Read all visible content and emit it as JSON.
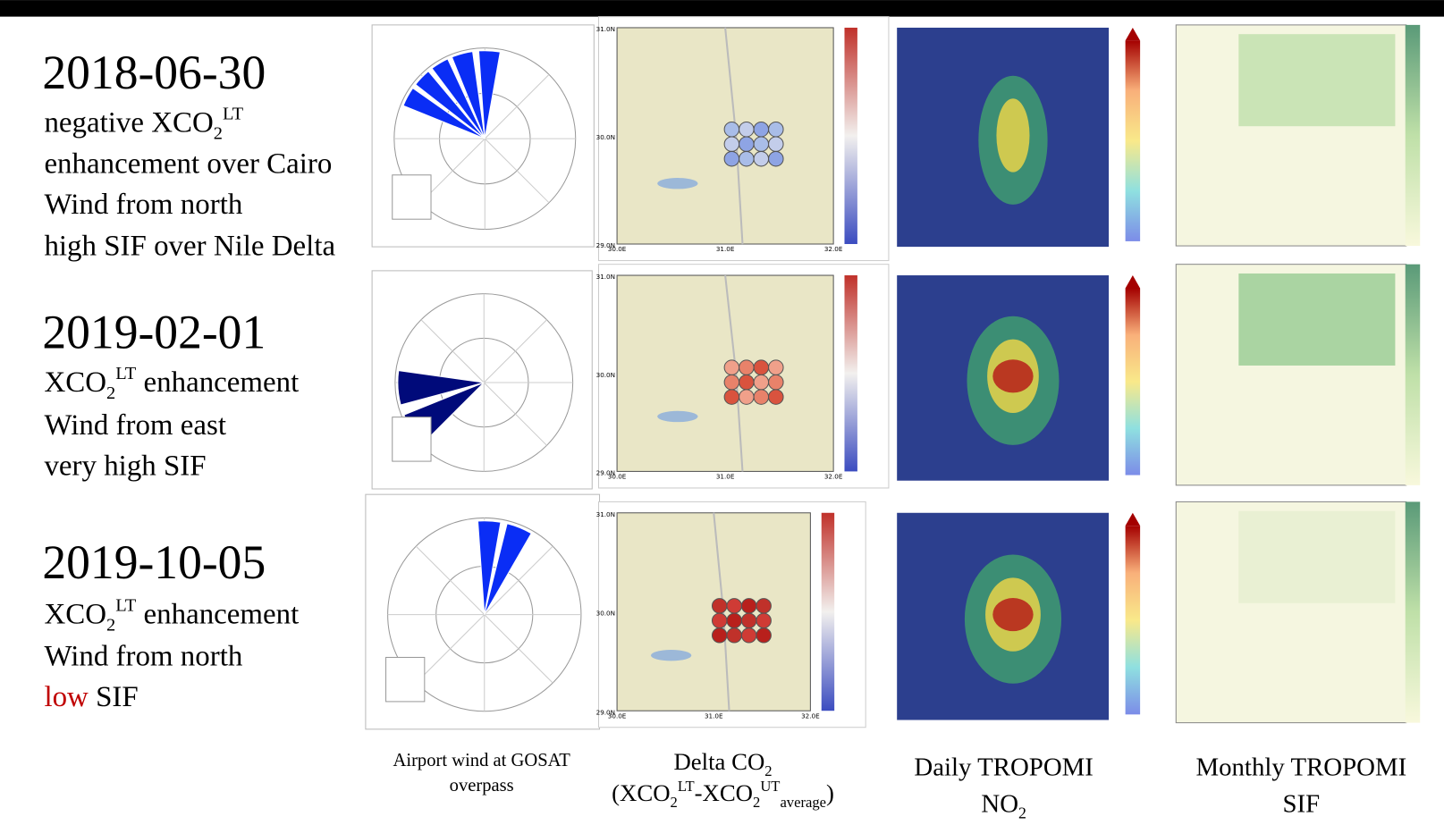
{
  "rows": [
    {
      "date": "2018-06-30",
      "lines": [
        [
          {
            "text": "negative XCO"
          },
          {
            "sub": "2"
          },
          {
            "sup": "LT"
          }
        ],
        [
          {
            "text": "enhancement over Cairo"
          }
        ],
        [
          {
            "text": "Wind from north"
          }
        ],
        [
          {
            "text": "high SIF over Nile Delta"
          }
        ]
      ]
    },
    {
      "date": "2019-02-01",
      "lines": [
        [
          {
            "text": "XCO"
          },
          {
            "sub": "2"
          },
          {
            "sup": "LT"
          },
          {
            "text": " enhancement"
          }
        ],
        [
          {
            "text": "Wind from east"
          }
        ],
        [
          {
            "text": "very high SIF"
          }
        ]
      ]
    },
    {
      "date": "2019-10-05",
      "lines": [
        [
          {
            "text": "XCO"
          },
          {
            "sub": "2"
          },
          {
            "sup": "LT"
          },
          {
            "text": " enhancement"
          }
        ],
        [
          {
            "text": "Wind from north"
          }
        ],
        [
          {
            "text": "low",
            "color": "#c00000"
          },
          {
            "text": " SIF"
          }
        ]
      ]
    }
  ],
  "map_axis": {
    "lat": [
      "31.0N",
      "30.0N",
      "29.0N"
    ],
    "lon": [
      "30.0E",
      "31.0E",
      "32.0E"
    ]
  },
  "captions": [
    {
      "lines": [
        [
          {
            "text": "Airport wind at GOSAT"
          }
        ],
        [
          {
            "text": "overpass"
          }
        ]
      ]
    },
    {
      "lines": [
        [
          {
            "text": "Delta CO"
          },
          {
            "sub": "2"
          }
        ],
        [
          {
            "text": "(XCO"
          },
          {
            "sub": "2"
          },
          {
            "sup": "LT"
          },
          {
            "text": "-XCO"
          },
          {
            "sub": "2"
          },
          {
            "sup": "UT"
          },
          {
            "sub": "average"
          },
          {
            "text": ")"
          }
        ]
      ]
    },
    {
      "lines": [
        [
          {
            "text": "Daily TROPOMI"
          }
        ],
        [
          {
            "text": "NO"
          },
          {
            "sub": "2"
          }
        ]
      ]
    },
    {
      "lines": [
        [
          {
            "text": "Monthly  TROPOMI"
          }
        ],
        [
          {
            "text": "SIF"
          }
        ]
      ]
    }
  ]
}
